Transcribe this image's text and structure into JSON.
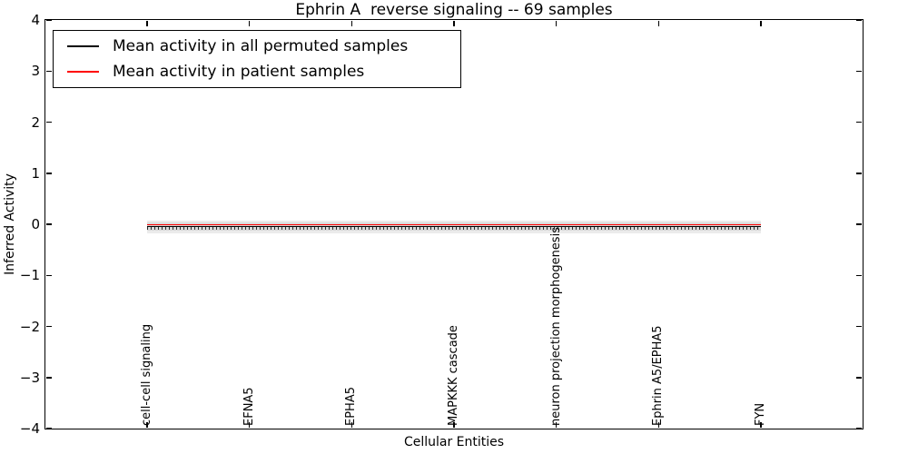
{
  "title": "Ephrin A  reverse signaling -- 69 samples",
  "chart_data": {
    "type": "line",
    "title": "Ephrin A  reverse signaling -- 69 samples",
    "xlabel": "Cellular Entities",
    "ylabel": "Inferred Activity",
    "ylim": [
      -4,
      4
    ],
    "grid": false,
    "legend_position": "upper left",
    "yticks": [
      {
        "value": 4,
        "label": "4"
      },
      {
        "value": 3,
        "label": "3"
      },
      {
        "value": 2,
        "label": "2"
      },
      {
        "value": 1,
        "label": "1"
      },
      {
        "value": 0,
        "label": "0"
      },
      {
        "value": -1,
        "label": "−1"
      },
      {
        "value": -2,
        "label": "−2"
      },
      {
        "value": -3,
        "label": "−3"
      },
      {
        "value": -4,
        "label": "−4"
      }
    ],
    "categories": [
      "cell-cell signaling",
      "EFNA5",
      "EPHA5",
      "MAPKKK cascade",
      "neuron projection morphogenesis",
      "Ephrin A5/EPHA5",
      "FYN"
    ],
    "series": [
      {
        "name": "Mean activity in all permuted samples",
        "color": "#000000",
        "style": "solid",
        "values": [
          -0.04,
          -0.04,
          -0.04,
          -0.04,
          -0.04,
          -0.04,
          -0.04
        ]
      },
      {
        "name": "Mean activity in patient samples",
        "color": "#ff0000",
        "style": "solid",
        "values": [
          -0.01,
          -0.01,
          -0.01,
          -0.01,
          -0.01,
          -0.01,
          -0.01
        ]
      }
    ],
    "band": {
      "description": "shaded spread of permuted sample activity around zero",
      "outer": {
        "lower": -0.18,
        "upper": 0.08,
        "color": "#ebebeb"
      },
      "inner": {
        "lower": -0.12,
        "upper": 0.03,
        "color": "#d9d9d9"
      }
    }
  }
}
